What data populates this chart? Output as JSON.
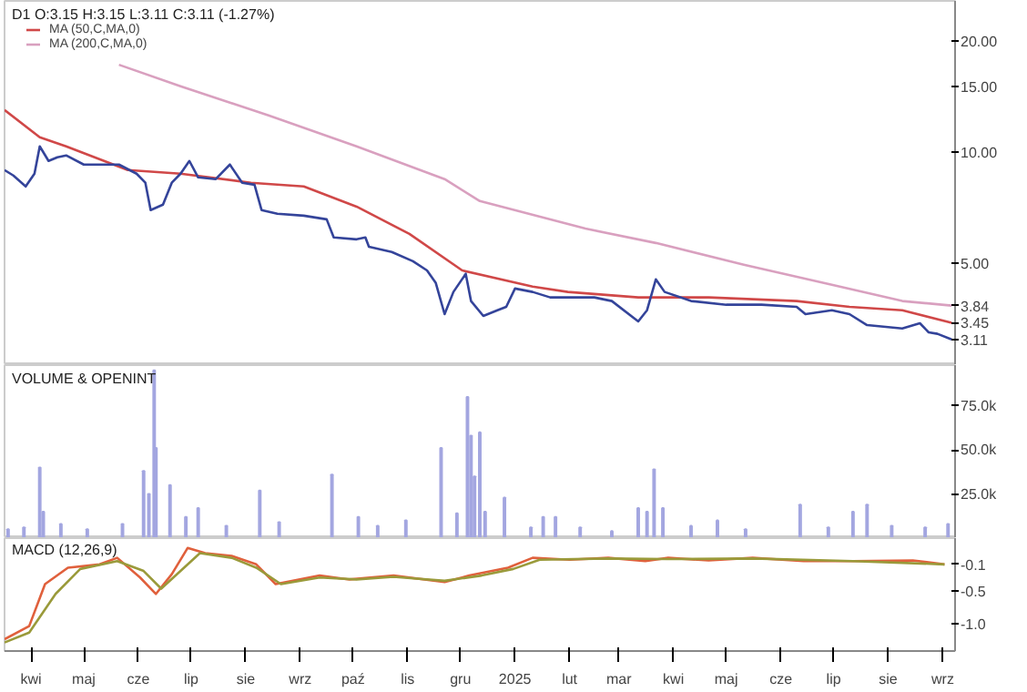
{
  "chart_data": [
    {
      "type": "line",
      "title": "D1 O:3.15 H:3.15 L:3.11 C:3.11 (-1.27%)",
      "log": "y",
      "legend": "top left",
      "tick_labels": "y",
      "xlim": [
        "2024-03-17",
        "2025-09-08"
      ],
      "ylim": [
        2.65,
        25.6
      ],
      "yticks": [
        {
          "value": 5,
          "label": "5.00"
        },
        {
          "value": 10,
          "label": "10.00"
        },
        {
          "value": 15,
          "label": "15.00"
        },
        {
          "value": 20,
          "label": "20.00"
        }
      ],
      "series": [
        {
          "name": "MA (50,C,MA,0)",
          "color": "#d04848",
          "x": [
            "2024-03-17",
            "2024-04-06",
            "2024-04-21",
            "2024-05-26",
            "2024-06-25",
            "2024-08-04",
            "2024-09-03",
            "2024-10-03",
            "2024-11-02",
            "2024-12-02",
            "2025-01-11",
            "2025-01-31",
            "2025-03-12",
            "2025-04-21",
            "2025-06-10",
            "2025-07-10",
            "2025-08-09",
            "2025-09-06"
          ],
          "values": [
            12.98,
            10.95,
            10.35,
            8.93,
            8.73,
            8.25,
            8.06,
            7.11,
            6.0,
            4.78,
            4.32,
            4.18,
            4.04,
            4.04,
            3.95,
            3.81,
            3.73,
            3.45
          ],
          "value_labels": [
            null,
            null,
            null,
            null,
            null,
            null,
            null,
            null,
            null,
            null,
            null,
            null,
            null,
            null,
            null,
            null,
            null,
            "3.45"
          ]
        },
        {
          "name": "MA (200,C,MA,0)",
          "color": "#d9a0bf",
          "x": [
            "2024-05-21",
            "2024-06-25",
            "2024-08-14",
            "2024-10-03",
            "2024-11-22",
            "2024-12-12",
            "2025-02-10",
            "2025-03-22",
            "2025-05-11",
            "2025-06-30",
            "2025-08-09",
            "2025-09-06"
          ],
          "values": [
            17.2,
            15.04,
            12.55,
            10.35,
            8.44,
            7.36,
            6.2,
            5.67,
            4.95,
            4.37,
            3.95,
            3.84
          ],
          "value_labels": [
            null,
            null,
            null,
            null,
            null,
            null,
            null,
            null,
            null,
            null,
            null,
            "3.84"
          ]
        },
        {
          "color": "#34449a",
          "x": [
            "2024-03-17",
            "2024-03-22",
            "2024-03-29",
            "2024-04-03",
            "2024-04-06",
            "2024-04-11",
            "2024-04-16",
            "2024-04-21",
            "2024-05-01",
            "2024-05-11",
            "2024-05-21",
            "2024-05-31",
            "2024-06-05",
            "2024-06-08",
            "2024-06-15",
            "2024-06-20",
            "2024-06-25",
            "2024-06-30",
            "2024-07-05",
            "2024-07-15",
            "2024-07-23",
            "2024-07-30",
            "2024-08-06",
            "2024-08-10",
            "2024-08-19",
            "2024-09-03",
            "2024-09-16",
            "2024-09-20",
            "2024-10-03",
            "2024-10-08",
            "2024-10-10",
            "2024-10-23",
            "2024-11-04",
            "2024-11-12",
            "2024-11-17",
            "2024-11-22",
            "2024-11-27",
            "2024-12-04",
            "2024-12-07",
            "2024-12-14",
            "2024-12-22",
            "2024-12-27",
            "2025-01-01",
            "2025-01-11",
            "2025-01-21",
            "2025-01-31",
            "2025-02-15",
            "2025-02-25",
            "2025-03-12",
            "2025-03-17",
            "2025-03-22",
            "2025-03-27",
            "2025-04-11",
            "2025-05-01",
            "2025-05-21",
            "2025-06-10",
            "2025-06-15",
            "2025-06-30",
            "2025-07-10",
            "2025-07-20",
            "2025-08-09",
            "2025-08-19",
            "2025-08-24",
            "2025-08-29",
            "2025-09-06"
          ],
          "values": [
            8.93,
            8.63,
            8.06,
            8.73,
            10.35,
            9.45,
            9.67,
            9.78,
            9.24,
            9.24,
            9.24,
            8.73,
            8.25,
            6.96,
            7.2,
            8.25,
            8.73,
            9.45,
            8.53,
            8.44,
            9.24,
            8.25,
            8.15,
            6.96,
            6.8,
            6.72,
            6.57,
            5.87,
            5.8,
            5.87,
            5.54,
            5.36,
            5.06,
            4.78,
            4.42,
            3.64,
            4.18,
            4.68,
            3.95,
            3.6,
            3.73,
            3.81,
            4.27,
            4.18,
            4.04,
            4.04,
            4.04,
            3.95,
            3.48,
            3.73,
            4.52,
            4.18,
            3.95,
            3.86,
            3.86,
            3.81,
            3.64,
            3.73,
            3.64,
            3.4,
            3.33,
            3.44,
            3.25,
            3.22,
            3.11
          ],
          "value_labels": [
            null,
            null,
            null,
            null,
            null,
            null,
            null,
            null,
            null,
            null,
            null,
            null,
            null,
            null,
            null,
            null,
            null,
            null,
            null,
            null,
            null,
            null,
            null,
            null,
            null,
            null,
            null,
            null,
            null,
            null,
            null,
            null,
            null,
            null,
            null,
            null,
            null,
            null,
            null,
            null,
            null,
            null,
            null,
            null,
            null,
            null,
            null,
            null,
            null,
            null,
            null,
            null,
            null,
            null,
            null,
            null,
            null,
            null,
            null,
            null,
            null,
            null,
            null,
            null,
            "3.11"
          ]
        }
      ]
    },
    {
      "type": "bar",
      "title": "VOLUME & OPENINT",
      "tick_labels": "y",
      "xlim": [
        "2024-03-17",
        "2025-09-08"
      ],
      "ylim": [
        0,
        98000
      ],
      "yticks": [
        {
          "value": 25000,
          "label": "25.0k"
        },
        {
          "value": 50000,
          "label": "50.0k"
        },
        {
          "value": 75000,
          "label": "75.0k"
        }
      ],
      "series": [
        {
          "color": "#a3a6e0",
          "x": [
            "2024-03-19",
            "2024-03-28",
            "2024-04-06",
            "2024-04-08",
            "2024-04-18",
            "2024-05-03",
            "2024-05-23",
            "2024-06-04",
            "2024-06-07",
            "2024-06-10",
            "2024-06-11",
            "2024-06-19",
            "2024-06-28",
            "2024-07-05",
            "2024-07-21",
            "2024-08-09",
            "2024-08-20",
            "2024-09-19",
            "2024-10-04",
            "2024-10-15",
            "2024-10-31",
            "2024-11-20",
            "2024-11-29",
            "2024-12-05",
            "2024-12-07",
            "2024-12-09",
            "2024-12-12",
            "2024-12-15",
            "2024-12-26",
            "2025-01-10",
            "2025-01-17",
            "2025-01-24",
            "2025-02-07",
            "2025-02-25",
            "2025-03-12",
            "2025-03-17",
            "2025-03-21",
            "2025-03-26",
            "2025-04-11",
            "2025-04-26",
            "2025-05-12",
            "2025-06-12",
            "2025-06-28",
            "2025-07-12",
            "2025-07-20",
            "2025-08-03",
            "2025-08-22",
            "2025-09-04"
          ],
          "values": [
            5000,
            6000,
            40000,
            15000,
            8000,
            5000,
            8000,
            38000,
            25000,
            95000,
            51000,
            30000,
            12000,
            17000,
            7000,
            27000,
            9000,
            36000,
            12000,
            7000,
            10000,
            51000,
            14000,
            80000,
            58000,
            35000,
            60000,
            15000,
            23000,
            6000,
            12000,
            12000,
            6000,
            4000,
            17000,
            15000,
            39000,
            17000,
            7000,
            10000,
            5000,
            19000,
            6000,
            15000,
            19000,
            7000,
            6000,
            8000
          ]
        }
      ]
    },
    {
      "type": "line",
      "title": "MACD (12,26,9)",
      "xlim": [
        "2024-03-17",
        "2025-09-08"
      ],
      "ylim": [
        -1.42,
        0.3
      ],
      "xticks": [
        {
          "value": "2024-04-01",
          "label": "kwi"
        },
        {
          "value": "2024-05-01",
          "label": "maj"
        },
        {
          "value": "2024-06-01",
          "label": "cze"
        },
        {
          "value": "2024-07-01",
          "label": "lip"
        },
        {
          "value": "2024-08-01",
          "label": "sie"
        },
        {
          "value": "2024-09-01",
          "label": "wrz"
        },
        {
          "value": "2024-10-01",
          "label": "paź"
        },
        {
          "value": "2024-11-01",
          "label": "lis"
        },
        {
          "value": "2024-12-01",
          "label": "gru"
        },
        {
          "value": "2025-01-01",
          "label": "2025"
        },
        {
          "value": "2025-02-01",
          "label": "lut"
        },
        {
          "value": "2025-03-01",
          "label": "mar"
        },
        {
          "value": "2025-04-01",
          "label": "kwi"
        },
        {
          "value": "2025-05-01",
          "label": "maj"
        },
        {
          "value": "2025-06-01",
          "label": "cze"
        },
        {
          "value": "2025-07-01",
          "label": "lip"
        },
        {
          "value": "2025-08-01",
          "label": "sie"
        },
        {
          "value": "2025-09-01",
          "label": "wrz"
        }
      ],
      "yticks": [
        {
          "value": -1.0,
          "label": "-1.0"
        },
        {
          "value": -0.5,
          "label": "-0.5"
        }
      ],
      "series": [
        {
          "color": "#e0603c",
          "x": [
            "2024-03-17",
            "2024-03-31",
            "2024-04-09",
            "2024-04-22",
            "2024-05-10",
            "2024-05-20",
            "2024-06-02",
            "2024-06-11",
            "2024-06-20",
            "2024-06-29",
            "2024-07-09",
            "2024-07-24",
            "2024-08-07",
            "2024-08-18",
            "2024-09-12",
            "2024-09-29",
            "2024-10-24",
            "2024-11-22",
            "2024-12-06",
            "2024-12-28",
            "2025-01-11",
            "2025-02-01",
            "2025-02-23",
            "2025-03-16",
            "2025-03-29",
            "2025-04-21",
            "2025-05-16",
            "2025-06-14",
            "2025-07-12",
            "2025-08-15",
            "2025-09-02"
          ],
          "values": [
            -1.24,
            -1.04,
            -0.4,
            -0.15,
            -0.1,
            0.0,
            -0.3,
            -0.55,
            -0.25,
            0.15,
            0.07,
            0.03,
            -0.1,
            -0.4,
            -0.27,
            -0.33,
            -0.27,
            -0.37,
            -0.27,
            -0.15,
            0.0,
            -0.03,
            0.0,
            -0.05,
            0.0,
            -0.04,
            0.0,
            -0.05,
            -0.05,
            -0.04,
            -0.1
          ]
        },
        {
          "color": "#9a9a3a",
          "x": [
            "2024-03-17",
            "2024-03-31",
            "2024-04-15",
            "2024-04-29",
            "2024-05-20",
            "2024-06-04",
            "2024-06-14",
            "2024-06-25",
            "2024-07-06",
            "2024-07-24",
            "2024-08-07",
            "2024-08-21",
            "2024-09-12",
            "2024-10-03",
            "2024-10-24",
            "2024-11-22",
            "2024-12-13",
            "2024-12-31",
            "2025-01-15",
            "2025-02-23",
            "2025-03-29",
            "2025-05-16",
            "2025-07-12",
            "2025-09-02"
          ],
          "values": [
            -1.29,
            -1.14,
            -0.55,
            -0.17,
            -0.05,
            -0.2,
            -0.47,
            -0.2,
            0.07,
            0.0,
            -0.15,
            -0.4,
            -0.3,
            -0.33,
            -0.29,
            -0.35,
            -0.27,
            -0.17,
            -0.03,
            -0.01,
            -0.02,
            -0.01,
            -0.05,
            -0.1
          ],
          "value_labels": [
            null,
            null,
            null,
            null,
            null,
            null,
            null,
            null,
            null,
            null,
            null,
            null,
            null,
            null,
            null,
            null,
            null,
            null,
            null,
            null,
            null,
            null,
            null,
            "-0.1"
          ]
        }
      ]
    }
  ]
}
